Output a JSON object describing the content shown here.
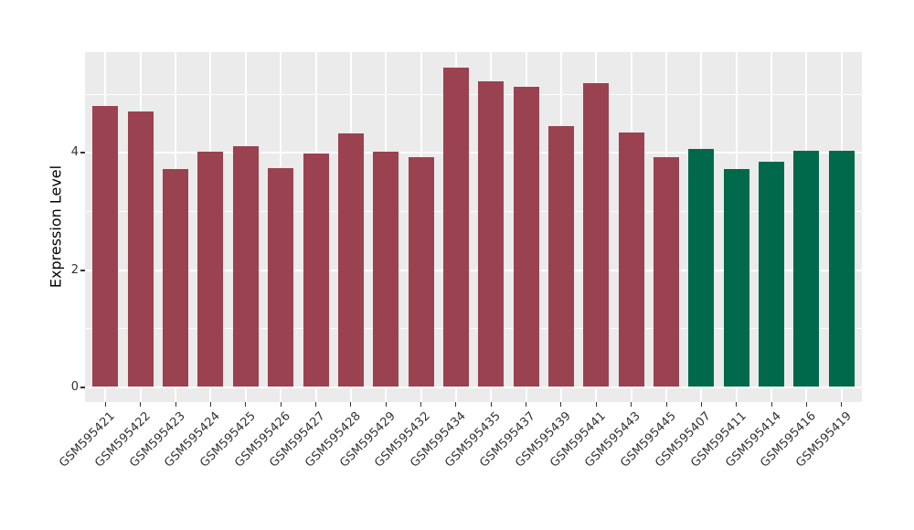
{
  "chart_data": {
    "type": "bar",
    "title": "",
    "xlabel": "",
    "ylabel": "Expression Level",
    "yticks": [
      0,
      2,
      4
    ],
    "yticks_minor": [
      1,
      3,
      5
    ],
    "ylim": [
      -0.25,
      5.72
    ],
    "grid": "on",
    "legend_position": "none",
    "panel_background": "#EBEBEB",
    "grid_color": "#FFFFFF",
    "axis_text_color": "#333333",
    "axis_title_color": "#000000",
    "group_palette": {
      "group1": "#9A4250",
      "group2": "#00694B"
    },
    "categories": [
      "GSM595421",
      "GSM595422",
      "GSM595423",
      "GSM595424",
      "GSM595425",
      "GSM595426",
      "GSM595427",
      "GSM595428",
      "GSM595429",
      "GSM595432",
      "GSM595434",
      "GSM595435",
      "GSM595437",
      "GSM595439",
      "GSM595441",
      "GSM595443",
      "GSM595445",
      "GSM595407",
      "GSM595411",
      "GSM595414",
      "GSM595416",
      "GSM595419"
    ],
    "series": [
      {
        "name": "Expression Level",
        "values": [
          4.8,
          4.71,
          3.72,
          4.02,
          4.11,
          3.74,
          3.99,
          4.33,
          4.02,
          3.93,
          5.45,
          5.22,
          5.12,
          4.46,
          5.19,
          4.35,
          3.93,
          4.06,
          3.72,
          3.84,
          4.04,
          4.04
        ]
      }
    ],
    "bar_groups": [
      "group1",
      "group1",
      "group1",
      "group1",
      "group1",
      "group1",
      "group1",
      "group1",
      "group1",
      "group1",
      "group1",
      "group1",
      "group1",
      "group1",
      "group1",
      "group1",
      "group1",
      "group2",
      "group2",
      "group2",
      "group2",
      "group2"
    ]
  }
}
